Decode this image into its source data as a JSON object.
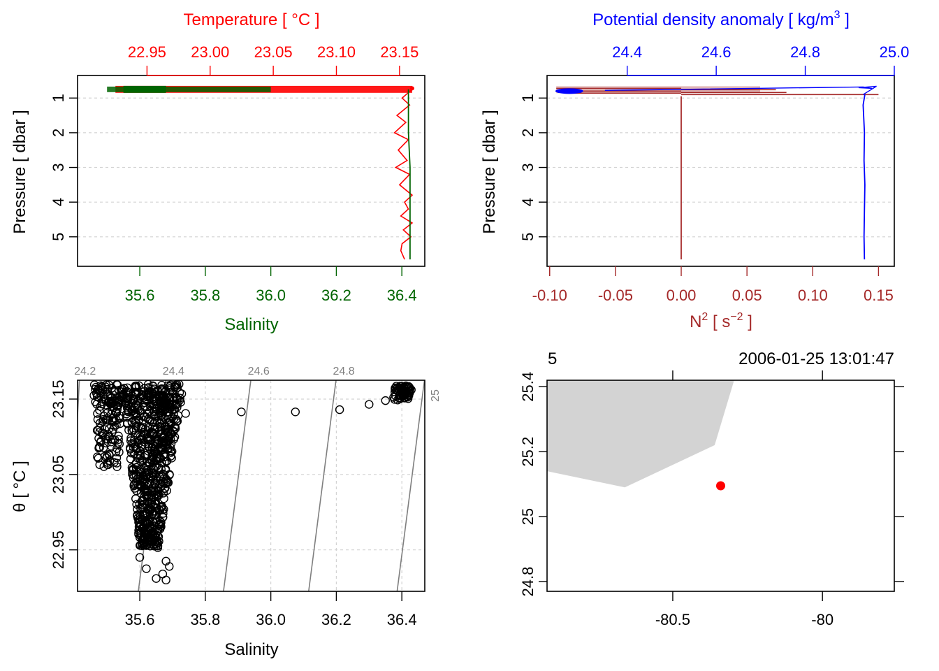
{
  "chart_data": [
    {
      "type": "line",
      "panel": "profile-salinity-temperature",
      "top_axis": {
        "label": "Temperature [ °C ]",
        "ticks": [
          "22.95",
          "23.00",
          "23.05",
          "23.10",
          "23.15"
        ],
        "range": [
          22.895,
          23.17
        ],
        "color": "#ff0000"
      },
      "bottom_axis": {
        "label": "Salinity",
        "ticks": [
          "35.6",
          "35.8",
          "36.0",
          "36.2",
          "36.4"
        ],
        "range": [
          35.41,
          36.47
        ],
        "color": "#006400"
      },
      "y_axis": {
        "label_parts": [
          "Pressure [ dbar ]"
        ],
        "ticks": [
          "1",
          "2",
          "3",
          "4",
          "5"
        ],
        "range": [
          5.85,
          0.35
        ],
        "reversed": true
      },
      "grid": true,
      "series": [
        {
          "variable": "temperature",
          "color": "#ff0000",
          "axis": "top",
          "x": [
            23.16,
            23.152,
            23.158,
            23.148,
            23.155,
            23.146,
            23.157,
            23.149,
            23.156,
            23.147,
            23.158,
            23.15,
            23.16,
            23.154,
            23.157,
            23.151,
            23.16,
            23.153,
            23.159,
            23.152,
            23.151,
            23.154
          ],
          "y": [
            0.75,
            1.0,
            1.2,
            1.5,
            1.7,
            2.0,
            2.2,
            2.5,
            2.8,
            3.0,
            3.2,
            3.5,
            3.8,
            4.0,
            4.2,
            4.4,
            4.6,
            4.8,
            5.0,
            5.2,
            5.4,
            5.65
          ]
        },
        {
          "variable": "salinity",
          "color": "#006400",
          "axis": "bottom",
          "x": [
            36.42,
            36.42,
            36.42,
            36.425,
            36.425,
            36.425
          ],
          "y": [
            0.75,
            1.0,
            2.0,
            3.0,
            4.0,
            5.65
          ]
        }
      ],
      "surface_band": {
        "pressure_range": [
          0.65,
          0.85
        ],
        "temperature_range": [
          22.925,
          23.16
        ],
        "salinity_range": [
          35.5,
          36.42
        ]
      }
    },
    {
      "type": "line",
      "panel": "profile-density-n2",
      "top_axis": {
        "label_parts": [
          "Potential density anomaly [ kg/m",
          "3",
          " ]"
        ],
        "ticks": [
          "24.4",
          "24.6",
          "24.8",
          "25.0"
        ],
        "range": [
          24.22,
          25.0
        ],
        "color": "#0000ff"
      },
      "bottom_axis": {
        "label_parts": [
          "N",
          "2",
          " [ s",
          "−2",
          " ]"
        ],
        "ticks": [
          "-0.10",
          "-0.05",
          "0.00",
          "0.05",
          "0.10",
          "0.15"
        ],
        "range": [
          -0.102,
          0.162
        ],
        "color": "#a52a2a"
      },
      "y_axis": {
        "label_parts": [
          "Pressure [ dbar ]"
        ],
        "ticks": [
          "1",
          "2",
          "3",
          "4",
          "5"
        ],
        "range": [
          5.85,
          0.35
        ],
        "reversed": true
      },
      "grid": true,
      "series": [
        {
          "variable": "density",
          "color": "#0000ff",
          "axis": "top",
          "x": [
            24.934,
            24.93,
            24.933,
            24.932,
            24.934,
            24.933,
            24.932,
            24.933
          ],
          "y": [
            0.9,
            1.2,
            2.0,
            2.8,
            3.5,
            4.2,
            5.0,
            5.65
          ]
        },
        {
          "variable": "n2",
          "color": "#a52a2a",
          "axis": "bottom",
          "x": [
            0.0,
            0.0,
            0.0,
            0.0,
            0.0,
            0.0
          ],
          "y": [
            0.95,
            1.5,
            2.5,
            3.5,
            4.5,
            5.65
          ]
        }
      ]
    },
    {
      "type": "scatter",
      "panel": "ts-diagram",
      "xlabel": "Salinity",
      "ylabel_parts": [
        "θ [ °C ]"
      ],
      "x_ticks": [
        "35.6",
        "35.8",
        "36.0",
        "36.2",
        "36.4"
      ],
      "y_ticks": [
        "22.95",
        "23.05",
        "23.15"
      ],
      "xlim": [
        35.41,
        36.47
      ],
      "ylim": [
        22.895,
        23.175
      ],
      "grid": true,
      "isopycnals": [
        {
          "label": "24.2",
          "x": [
            35.42,
            35.38
          ]
        },
        {
          "label": "24.4",
          "x": [
            35.69,
            35.59
          ]
        },
        {
          "label": "24.6",
          "x": [
            35.95,
            35.85
          ]
        },
        {
          "label": "24.8",
          "x": [
            36.21,
            36.11
          ]
        },
        {
          "label": "25",
          "x": [
            36.48,
            36.38
          ]
        }
      ],
      "points": [
        {
          "x": 35.74,
          "y": 23.131
        },
        {
          "x": 35.91,
          "y": 23.133
        },
        {
          "x": 36.075,
          "y": 23.133
        },
        {
          "x": 36.21,
          "y": 23.136
        },
        {
          "x": 36.3,
          "y": 23.143
        },
        {
          "x": 36.35,
          "y": 23.148
        },
        {
          "x": 35.645,
          "y": 22.958
        },
        {
          "x": 35.655,
          "y": 22.953
        },
        {
          "x": 35.68,
          "y": 22.935
        },
        {
          "x": 35.69,
          "y": 22.928
        },
        {
          "x": 35.67,
          "y": 22.918
        },
        {
          "x": 35.68,
          "y": 22.91
        },
        {
          "x": 35.65,
          "y": 22.912
        },
        {
          "x": 35.6,
          "y": 22.94
        },
        {
          "x": 35.62,
          "y": 22.925
        }
      ],
      "clusters": [
        {
          "x_range": [
            35.38,
            36.47
          ],
          "dense_region": "main",
          "y_range": [
            22.93,
            23.16
          ]
        }
      ]
    },
    {
      "type": "map",
      "panel": "station-map",
      "header_left": "5",
      "header_right": "2006-01-25 13:01:47",
      "x_ticks": [
        "-80.5",
        "-80"
      ],
      "y_ticks": [
        "24.8",
        "25",
        "25.2",
        "25.4"
      ],
      "xlim": [
        -80.92,
        -79.76
      ],
      "ylim": [
        24.77,
        25.42
      ],
      "land_color": "#d3d3d3",
      "land_polygon": [
        [
          -80.92,
          25.42
        ],
        [
          -80.295,
          25.42
        ],
        [
          -80.36,
          25.22
        ],
        [
          -80.66,
          25.09
        ],
        [
          -80.92,
          25.14
        ]
      ],
      "station": {
        "lon": -80.34,
        "lat": 25.095,
        "color": "#ff0000"
      }
    }
  ]
}
